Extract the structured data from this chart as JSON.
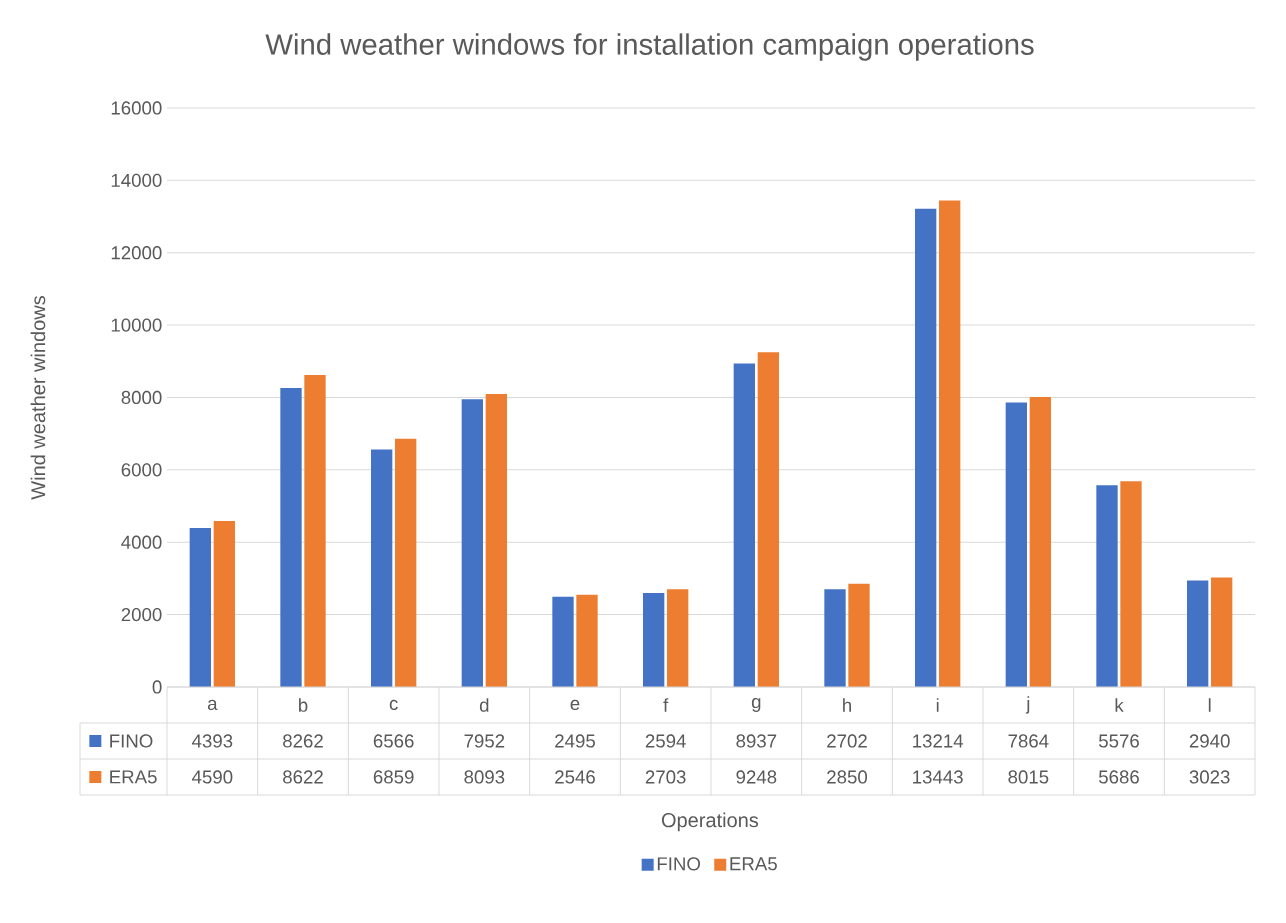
{
  "chart_data": {
    "type": "bar",
    "title": "Wind weather windows for installation campaign operations",
    "xlabel": "Operations",
    "ylabel": "Wind weather windows",
    "categories": [
      "a",
      "b",
      "c",
      "d",
      "e",
      "f",
      "g",
      "h",
      "i",
      "j",
      "k",
      "l"
    ],
    "series": [
      {
        "name": "FINO",
        "color": "#4472c4",
        "values": [
          4393,
          8262,
          6566,
          7952,
          2495,
          2594,
          8937,
          2702,
          13214,
          7864,
          5576,
          2940
        ]
      },
      {
        "name": "ERA5",
        "color": "#ed7d31",
        "values": [
          4590,
          8622,
          6859,
          8093,
          2546,
          2703,
          9248,
          2850,
          13443,
          8015,
          5686,
          3023
        ]
      }
    ],
    "ylim": [
      0,
      16000
    ],
    "yticks": [
      0,
      2000,
      4000,
      6000,
      8000,
      10000,
      12000,
      14000,
      16000
    ],
    "grid": "y",
    "legend": "bottom",
    "data_labels": true
  }
}
